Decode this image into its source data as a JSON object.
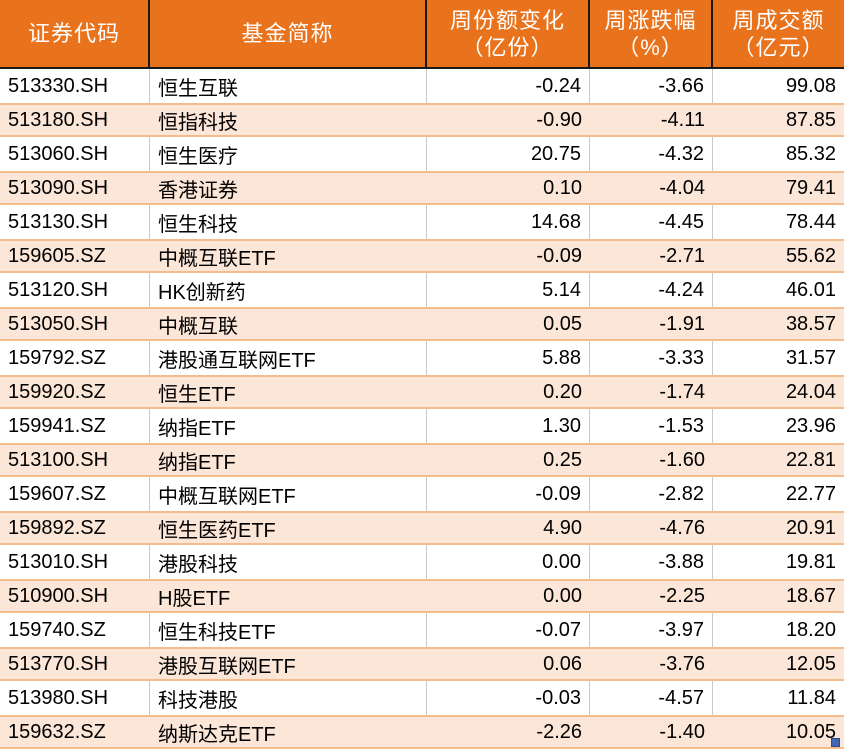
{
  "table": {
    "columns": [
      {
        "id": "code",
        "label": "证券代码",
        "sub": ""
      },
      {
        "id": "name",
        "label": "基金简称",
        "sub": ""
      },
      {
        "id": "share_change",
        "label": "周份额变化",
        "sub": "（亿份）"
      },
      {
        "id": "pct_change",
        "label": "周涨跌幅",
        "sub": "（%）"
      },
      {
        "id": "turnover",
        "label": "周成交额",
        "sub": "（亿元）"
      }
    ],
    "rows": [
      {
        "code": "513330.SH",
        "name": "恒生互联",
        "share_change": "-0.24",
        "pct_change": "-3.66",
        "turnover": "99.08"
      },
      {
        "code": "513180.SH",
        "name": "恒指科技",
        "share_change": "-0.90",
        "pct_change": "-4.11",
        "turnover": "87.85"
      },
      {
        "code": "513060.SH",
        "name": "恒生医疗",
        "share_change": "20.75",
        "pct_change": "-4.32",
        "turnover": "85.32"
      },
      {
        "code": "513090.SH",
        "name": "香港证券",
        "share_change": "0.10",
        "pct_change": "-4.04",
        "turnover": "79.41"
      },
      {
        "code": "513130.SH",
        "name": "恒生科技",
        "share_change": "14.68",
        "pct_change": "-4.45",
        "turnover": "78.44"
      },
      {
        "code": "159605.SZ",
        "name": "中概互联ETF",
        "share_change": "-0.09",
        "pct_change": "-2.71",
        "turnover": "55.62"
      },
      {
        "code": "513120.SH",
        "name": "HK创新药",
        "share_change": "5.14",
        "pct_change": "-4.24",
        "turnover": "46.01"
      },
      {
        "code": "513050.SH",
        "name": "中概互联",
        "share_change": "0.05",
        "pct_change": "-1.91",
        "turnover": "38.57"
      },
      {
        "code": "159792.SZ",
        "name": "港股通互联网ETF",
        "share_change": "5.88",
        "pct_change": "-3.33",
        "turnover": "31.57"
      },
      {
        "code": "159920.SZ",
        "name": "恒生ETF",
        "share_change": "0.20",
        "pct_change": "-1.74",
        "turnover": "24.04"
      },
      {
        "code": "159941.SZ",
        "name": "纳指ETF",
        "share_change": "1.30",
        "pct_change": "-1.53",
        "turnover": "23.96"
      },
      {
        "code": "513100.SH",
        "name": "纳指ETF",
        "share_change": "0.25",
        "pct_change": "-1.60",
        "turnover": "22.81"
      },
      {
        "code": "159607.SZ",
        "name": "中概互联网ETF",
        "share_change": "-0.09",
        "pct_change": "-2.82",
        "turnover": "22.77"
      },
      {
        "code": "159892.SZ",
        "name": "恒生医药ETF",
        "share_change": "4.90",
        "pct_change": "-4.76",
        "turnover": "20.91"
      },
      {
        "code": "513010.SH",
        "name": "港股科技",
        "share_change": "0.00",
        "pct_change": "-3.88",
        "turnover": "19.81"
      },
      {
        "code": "510900.SH",
        "name": "H股ETF",
        "share_change": "0.00",
        "pct_change": "-2.25",
        "turnover": "18.67"
      },
      {
        "code": "159740.SZ",
        "name": "恒生科技ETF",
        "share_change": "-0.07",
        "pct_change": "-3.97",
        "turnover": "18.20"
      },
      {
        "code": "513770.SH",
        "name": "港股互联网ETF",
        "share_change": "0.06",
        "pct_change": "-3.76",
        "turnover": "12.05"
      },
      {
        "code": "513980.SH",
        "name": "科技港股",
        "share_change": "-0.03",
        "pct_change": "-4.57",
        "turnover": "11.84"
      },
      {
        "code": "159632.SZ",
        "name": "纳斯达克ETF",
        "share_change": "-2.26",
        "pct_change": "-1.40",
        "turnover": "10.05"
      }
    ]
  },
  "colors": {
    "header_bg": "#e8731c",
    "header_text": "#ffffff",
    "header_divider": "#1a1a1a",
    "row_alt_bg": "#fce6d8",
    "row_alt_border": "#f4bc8c",
    "grid_line": "#c9c9c9",
    "body_text": "#000000",
    "fill_handle": "#4067b0"
  }
}
